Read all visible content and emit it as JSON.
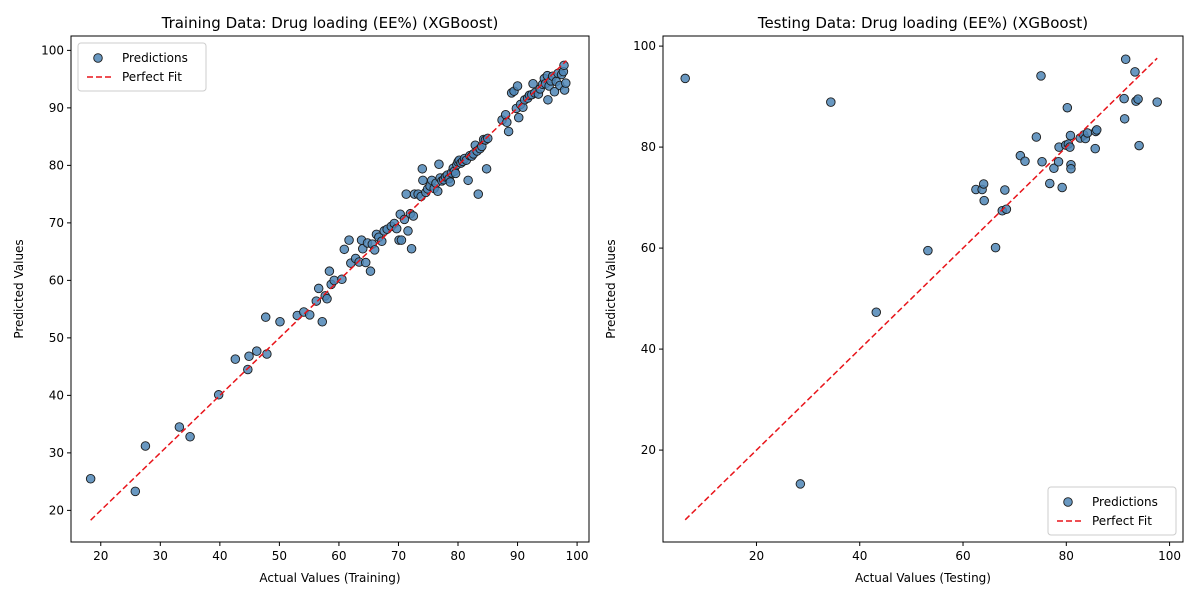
{
  "colors": {
    "point_fill": "#4f86b6",
    "point_edge": "#1a1a1a",
    "fit_line": "#e8141a"
  },
  "chart_data": [
    {
      "type": "scatter",
      "title": "Training Data: Drug loading (EE%) (XGBoost)",
      "xlabel": "Actual Values (Training)",
      "ylabel": "Predicted Values",
      "xlim": [
        15,
        102
      ],
      "ylim": [
        14.5,
        102.5
      ],
      "xticks": [
        20,
        30,
        40,
        50,
        60,
        70,
        80,
        90,
        100
      ],
      "yticks": [
        20,
        30,
        40,
        50,
        60,
        70,
        80,
        90,
        100
      ],
      "legend": {
        "placement": "upper-left",
        "entries": [
          "Predictions",
          "Perfect Fit"
        ]
      },
      "fit_line": [
        [
          18.3,
          18.3
        ],
        [
          98.2,
          98.2
        ]
      ],
      "points": [
        [
          18.3,
          25.5
        ],
        [
          25.8,
          23.3
        ],
        [
          27.5,
          31.2
        ],
        [
          33.2,
          34.5
        ],
        [
          35.0,
          32.8
        ],
        [
          39.8,
          40.1
        ],
        [
          42.6,
          46.3
        ],
        [
          44.7,
          44.5
        ],
        [
          44.9,
          46.8
        ],
        [
          46.2,
          47.7
        ],
        [
          47.7,
          53.6
        ],
        [
          47.9,
          47.2
        ],
        [
          50.1,
          52.8
        ],
        [
          53.0,
          53.9
        ],
        [
          54.1,
          54.5
        ],
        [
          55.1,
          54.0
        ],
        [
          56.2,
          56.4
        ],
        [
          56.6,
          58.6
        ],
        [
          57.2,
          52.8
        ],
        [
          57.7,
          57.3
        ],
        [
          58.0,
          56.8
        ],
        [
          58.4,
          61.6
        ],
        [
          58.7,
          59.3
        ],
        [
          59.2,
          60.0
        ],
        [
          60.5,
          60.2
        ],
        [
          60.9,
          65.4
        ],
        [
          61.7,
          67.0
        ],
        [
          62.0,
          63.0
        ],
        [
          62.8,
          63.8
        ],
        [
          63.4,
          63.2
        ],
        [
          63.8,
          67.0
        ],
        [
          64.0,
          65.5
        ],
        [
          64.5,
          63.1
        ],
        [
          64.8,
          66.5
        ],
        [
          65.3,
          61.6
        ],
        [
          65.6,
          66.3
        ],
        [
          66.0,
          65.3
        ],
        [
          66.3,
          68.0
        ],
        [
          66.7,
          67.5
        ],
        [
          67.2,
          66.8
        ],
        [
          67.6,
          68.6
        ],
        [
          68.1,
          68.9
        ],
        [
          68.8,
          69.4
        ],
        [
          69.3,
          69.9
        ],
        [
          69.7,
          69.0
        ],
        [
          70.1,
          67.0
        ],
        [
          70.3,
          71.5
        ],
        [
          70.5,
          67.0
        ],
        [
          71.0,
          70.6
        ],
        [
          71.3,
          75.0
        ],
        [
          71.6,
          68.6
        ],
        [
          72.0,
          71.6
        ],
        [
          72.2,
          65.5
        ],
        [
          72.5,
          71.2
        ],
        [
          72.7,
          75.0
        ],
        [
          73.3,
          75.0
        ],
        [
          73.8,
          74.6
        ],
        [
          74.0,
          79.4
        ],
        [
          74.1,
          77.4
        ],
        [
          74.6,
          75.3
        ],
        [
          74.9,
          75.9
        ],
        [
          75.3,
          76.4
        ],
        [
          75.6,
          77.4
        ],
        [
          76.0,
          76.0
        ],
        [
          76.3,
          76.9
        ],
        [
          76.6,
          75.5
        ],
        [
          76.8,
          80.2
        ],
        [
          77.0,
          77.8
        ],
        [
          77.3,
          77.3
        ],
        [
          77.6,
          77.5
        ],
        [
          77.9,
          78.0
        ],
        [
          78.2,
          78.3
        ],
        [
          78.5,
          77.7
        ],
        [
          78.7,
          77.1
        ],
        [
          78.9,
          78.7
        ],
        [
          79.2,
          79.5
        ],
        [
          79.4,
          79.0
        ],
        [
          79.6,
          78.6
        ],
        [
          79.8,
          80.1
        ],
        [
          80.0,
          80.6
        ],
        [
          80.2,
          80.9
        ],
        [
          80.5,
          80.4
        ],
        [
          80.8,
          80.7
        ],
        [
          81.1,
          81.2
        ],
        [
          81.4,
          80.9
        ],
        [
          81.7,
          77.4
        ],
        [
          82.0,
          81.7
        ],
        [
          82.3,
          81.6
        ],
        [
          82.6,
          82.0
        ],
        [
          82.9,
          83.5
        ],
        [
          83.2,
          82.5
        ],
        [
          83.4,
          75.0
        ],
        [
          83.7,
          82.9
        ],
        [
          84.0,
          83.3
        ],
        [
          84.3,
          84.5
        ],
        [
          84.6,
          84.4
        ],
        [
          84.8,
          79.4
        ],
        [
          85.0,
          84.7
        ],
        [
          87.4,
          87.9
        ],
        [
          88.0,
          88.8
        ],
        [
          88.2,
          87.5
        ],
        [
          88.5,
          85.9
        ],
        [
          89.0,
          92.6
        ],
        [
          89.4,
          92.9
        ],
        [
          89.8,
          89.9
        ],
        [
          90.0,
          93.8
        ],
        [
          90.2,
          88.3
        ],
        [
          90.5,
          90.6
        ],
        [
          90.9,
          90.1
        ],
        [
          91.2,
          91.4
        ],
        [
          91.7,
          91.7
        ],
        [
          92.0,
          92.2
        ],
        [
          92.4,
          92.3
        ],
        [
          92.6,
          94.2
        ],
        [
          92.9,
          92.6
        ],
        [
          93.5,
          92.4
        ],
        [
          93.8,
          93.3
        ],
        [
          94.2,
          94.1
        ],
        [
          94.5,
          95.1
        ],
        [
          94.7,
          94.2
        ],
        [
          95.0,
          95.6
        ],
        [
          95.1,
          91.4
        ],
        [
          95.3,
          93.8
        ],
        [
          95.6,
          94.7
        ],
        [
          95.9,
          95.5
        ],
        [
          96.2,
          92.8
        ],
        [
          96.5,
          94.6
        ],
        [
          96.8,
          96.0
        ],
        [
          97.1,
          93.9
        ],
        [
          97.4,
          95.8
        ],
        [
          97.7,
          96.3
        ],
        [
          97.8,
          97.4
        ],
        [
          97.9,
          93.1
        ],
        [
          98.1,
          94.3
        ]
      ]
    },
    {
      "type": "scatter",
      "title": "Testing Data: Drug loading (EE%) (XGBoost)",
      "xlabel": "Actual Values (Testing)",
      "ylabel": "Predicted Values",
      "xlim": [
        1.9,
        102.6
      ],
      "ylim": [
        1.8,
        102.0
      ],
      "xticks": [
        20,
        40,
        60,
        80,
        100
      ],
      "yticks": [
        20,
        40,
        60,
        80,
        100
      ],
      "legend": {
        "placement": "lower-right",
        "entries": [
          "Predictions",
          "Perfect Fit"
        ]
      },
      "fit_line": [
        [
          6.2,
          6.2
        ],
        [
          97.6,
          97.6
        ]
      ],
      "points": [
        [
          6.2,
          93.6
        ],
        [
          28.5,
          13.3
        ],
        [
          34.4,
          88.9
        ],
        [
          43.2,
          47.3
        ],
        [
          53.2,
          59.5
        ],
        [
          62.5,
          71.6
        ],
        [
          63.7,
          71.6
        ],
        [
          64.0,
          72.7
        ],
        [
          64.1,
          69.4
        ],
        [
          66.3,
          60.1
        ],
        [
          67.6,
          67.4
        ],
        [
          68.1,
          71.5
        ],
        [
          68.4,
          67.7
        ],
        [
          71.1,
          78.3
        ],
        [
          72.0,
          77.2
        ],
        [
          74.2,
          82.0
        ],
        [
          75.1,
          94.1
        ],
        [
          75.3,
          77.1
        ],
        [
          76.8,
          72.8
        ],
        [
          77.6,
          75.8
        ],
        [
          78.5,
          77.1
        ],
        [
          78.6,
          80.0
        ],
        [
          79.2,
          72.0
        ],
        [
          79.9,
          80.4
        ],
        [
          80.2,
          87.8
        ],
        [
          80.4,
          80.6
        ],
        [
          80.7,
          80.0
        ],
        [
          80.8,
          82.3
        ],
        [
          80.9,
          76.5
        ],
        [
          80.9,
          75.7
        ],
        [
          82.7,
          81.8
        ],
        [
          83.4,
          82.4
        ],
        [
          83.7,
          81.7
        ],
        [
          84.1,
          82.8
        ],
        [
          85.6,
          79.7
        ],
        [
          85.7,
          83.1
        ],
        [
          85.9,
          83.4
        ],
        [
          91.2,
          89.6
        ],
        [
          91.3,
          85.6
        ],
        [
          91.5,
          97.4
        ],
        [
          93.3,
          94.9
        ],
        [
          93.5,
          89.1
        ],
        [
          93.9,
          89.5
        ],
        [
          94.1,
          80.3
        ],
        [
          97.6,
          88.9
        ]
      ]
    }
  ]
}
